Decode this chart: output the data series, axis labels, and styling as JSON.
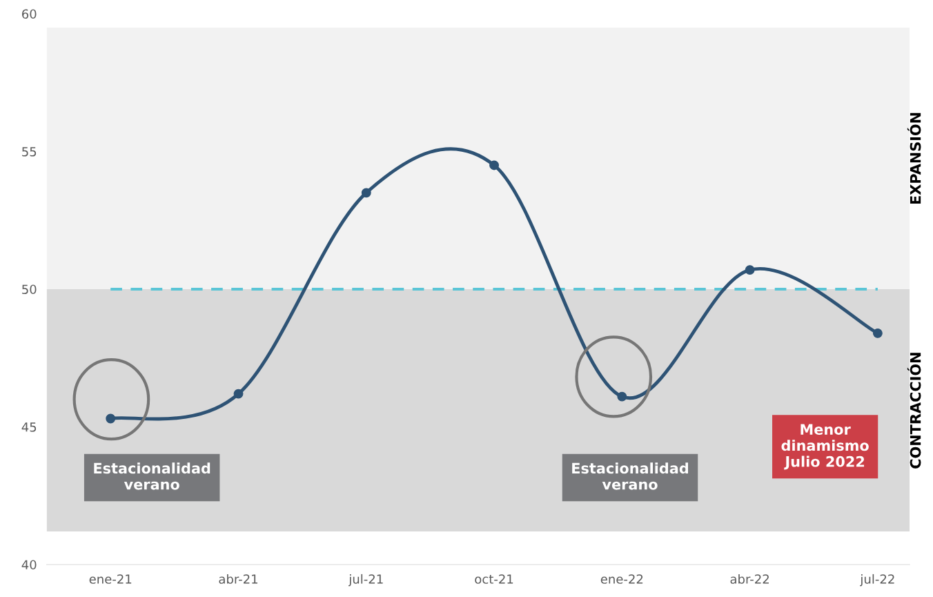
{
  "chart_data": {
    "type": "line",
    "categories": [
      "ene-21",
      "abr-21",
      "jul-21",
      "oct-21",
      "ene-22",
      "abr-22",
      "jul-22"
    ],
    "series": [
      {
        "color": "#2e5375",
        "values": [
          45.3,
          46.2,
          53.5,
          54.5,
          46.1,
          50.7,
          48.4
        ]
      }
    ],
    "marker": "circle",
    "ylim": [
      40,
      60
    ],
    "yticks": [
      40,
      45,
      50,
      55,
      60
    ],
    "grid": false,
    "ref_lines": [
      {
        "axis": "y",
        "value": 50,
        "color": "#5bc5d6",
        "line_style": "dashed"
      }
    ],
    "bands": [
      {
        "axis": "y",
        "from": 50,
        "to": 59.5,
        "label": "EXPANSIÓN",
        "color": "#f2f2f2"
      },
      {
        "axis": "y",
        "from": 41.2,
        "to": 50,
        "label": "CONTRACCIÓN",
        "color": "#d9d9d9"
      }
    ],
    "annotations": [
      "Estacionalidad\nverano",
      "Estacionalidad\nverano",
      "Menor\ndinamismo\nJulio 2022"
    ]
  }
}
